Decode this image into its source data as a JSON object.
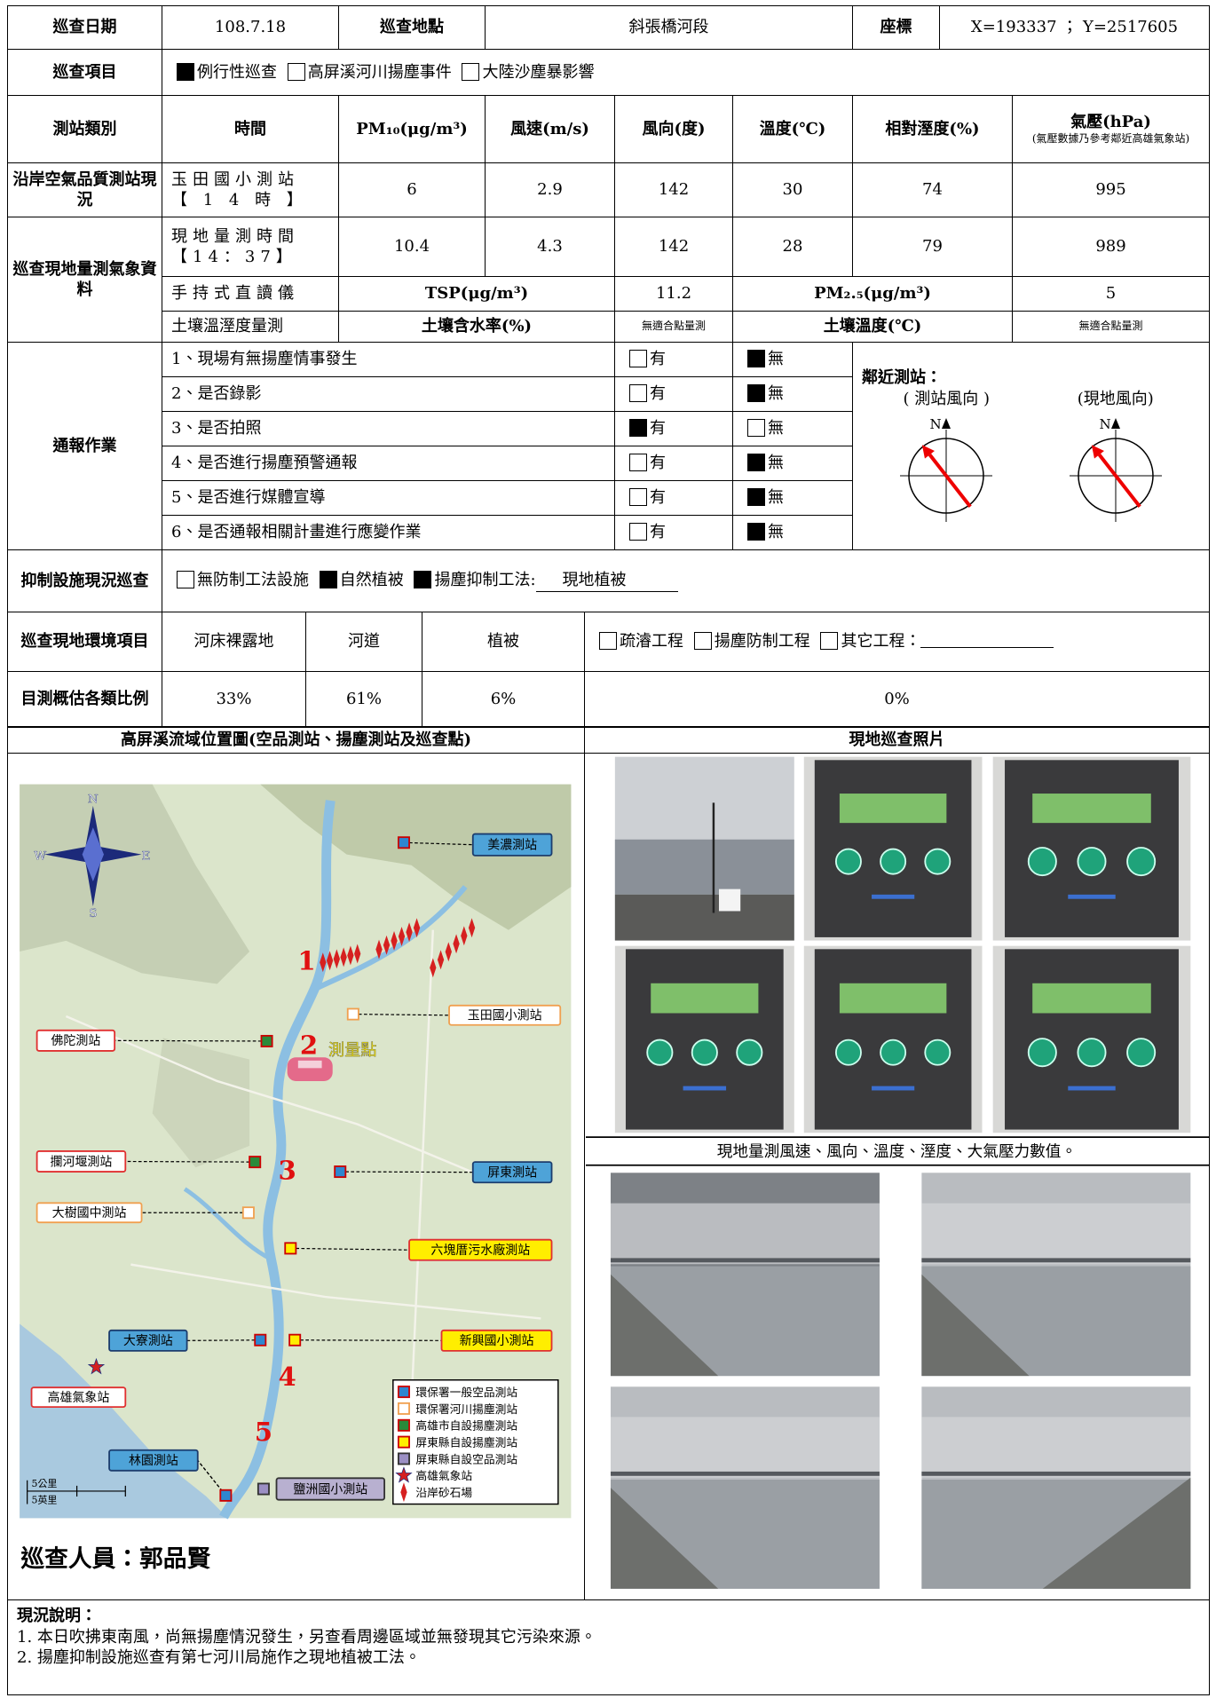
{
  "header": {
    "date_label": "巡查日期",
    "date": "108.7.18",
    "site_label": "巡查地點",
    "site": "斜張橋河段",
    "coord_label": "座標",
    "coord": "X=193337 ； Y=2517605"
  },
  "inspection_items": {
    "label": "巡查項目",
    "options": [
      {
        "text": "例行性巡查",
        "checked": true
      },
      {
        "text": "高屏溪河川揚塵事件",
        "checked": false
      },
      {
        "text": "大陸沙塵暴影響",
        "checked": false
      }
    ]
  },
  "weather": {
    "headers": [
      "測站類別",
      "時間",
      "PM₁₀(μg/m³)",
      "風速(m/s)",
      "風向(度)",
      "溫度(℃)",
      "相對溼度(%)",
      "氣壓(hPa)"
    ],
    "pressure_note": "(氣壓數據乃參考鄰近高雄氣象站)",
    "station": {
      "category": "沿岸空氣品質測站現況",
      "name": "玉田國小測站",
      "time": "【 1 4 時 】",
      "pm10": 6,
      "wind_speed": 2.9,
      "wind_dir": 142,
      "temp": 30,
      "humidity": 74,
      "pressure": 995
    },
    "site": {
      "category": "巡查現地量測氣象資料",
      "name": "現地量測時間",
      "time": "【14：37】",
      "pm10": 10.4,
      "wind_speed": 4.3,
      "wind_dir": 142,
      "temp": 28,
      "humidity": 79,
      "pressure": 989
    },
    "handheld": {
      "label": "手持式直讀儀",
      "tsp_label": "TSP(μg/m³)",
      "tsp": 11.2,
      "pm25_label": "PM₂.₅(μg/m³)",
      "pm25": 5
    },
    "soil": {
      "label": "土壤溫溼度量測",
      "moisture_label": "土壤含水率(%)",
      "moisture": "無適合點量測",
      "temp_label": "土壤溫度(℃)",
      "temp": "無適合點量測"
    }
  },
  "notification": {
    "label": "通報作業",
    "yes": "有",
    "no": "無",
    "items": [
      {
        "text": "1、現場有無揚塵情事發生",
        "answer": false
      },
      {
        "text": "2、是否錄影",
        "answer": false
      },
      {
        "text": "3、是否拍照",
        "answer": true
      },
      {
        "text": "4、是否進行揚塵預警通報",
        "answer": false
      },
      {
        "text": "5、是否進行媒體宣導",
        "answer": false
      },
      {
        "text": "6、是否通報相關計畫進行應變作業",
        "answer": false
      }
    ],
    "compass": {
      "title": "鄰近測站：",
      "station_label": "( 測站風向 )",
      "site_label": "(現地風向)",
      "north": "N"
    }
  },
  "suppression": {
    "label": "抑制設施現況巡查",
    "options": [
      {
        "text": "無防制工法設施",
        "checked": false
      },
      {
        "text": "自然植被",
        "checked": true
      },
      {
        "text": "揚塵抑制工法:",
        "checked": true
      }
    ],
    "method": "現地植被"
  },
  "environment": {
    "label": "巡查現地環境項目",
    "columns": [
      "河床裸露地",
      "河道",
      "植被"
    ],
    "options": [
      {
        "text": "疏濬工程",
        "checked": false
      },
      {
        "text": "揚塵防制工程",
        "checked": false
      },
      {
        "text": "其它工程：",
        "checked": false
      }
    ]
  },
  "ratio": {
    "label": "目測概估各類比例",
    "values": [
      "33%",
      "61%",
      "6%",
      "0%"
    ]
  },
  "map": {
    "title": "高屏溪流域位置圖(空品測站、揚塵測站及巡查點)",
    "stations": [
      {
        "name": "美濃測站",
        "type": "epa-air"
      },
      {
        "name": "玉田國小測站",
        "type": "epa-dust"
      },
      {
        "name": "佛陀測站",
        "type": "kaohsiung-dust"
      },
      {
        "name": "攔河堰測站",
        "type": "kaohsiung-dust"
      },
      {
        "name": "屏東測站",
        "type": "epa-air"
      },
      {
        "name": "大樹國中測站",
        "type": "epa-dust"
      },
      {
        "name": "六塊厝污水廠測站",
        "type": "pingtung-dust"
      },
      {
        "name": "大寮測站",
        "type": "epa-air"
      },
      {
        "name": "新興國小測站",
        "type": "pingtung-dust"
      },
      {
        "name": "林園測站",
        "type": "epa-air"
      },
      {
        "name": "鹽洲國小測站",
        "type": "pingtung-air"
      },
      {
        "name": "高雄氣象站",
        "type": "weather"
      }
    ],
    "points": [
      "1",
      "2",
      "3",
      "4",
      "5"
    ],
    "measure_point": "測量點",
    "legend": [
      {
        "type": "epa-air",
        "text": "環保署一般空品測站"
      },
      {
        "type": "epa-dust",
        "text": "環保署河川揚塵測站"
      },
      {
        "type": "kaohsiung-dust",
        "text": "高雄市自設揚塵測站"
      },
      {
        "type": "pingtung-dust",
        "text": "屏東縣自設揚塵測站"
      },
      {
        "type": "pingtung-air",
        "text": "屏東縣自設空品測站"
      },
      {
        "type": "weather",
        "text": "高雄氣象站"
      },
      {
        "type": "sand",
        "text": "沿岸砂石場"
      }
    ],
    "scale": [
      "5公里",
      "5英里"
    ],
    "compass": [
      "N",
      "E",
      "S",
      "W"
    ],
    "inspector": "巡查人員：郭品賢"
  },
  "photos": {
    "title": "現地巡查照片",
    "caption": "現地量測風速、風向、溫度、溼度、大氣壓力數值。"
  },
  "remarks": {
    "title": "現況說明：",
    "lines": [
      "1. 本日吹拂東南風，尚無揚塵情況發生，另查看周邊區域並無發現其它污染來源。",
      "2. 揚塵抑制設施巡查有第七河川局施作之現地植被工法。"
    ]
  }
}
